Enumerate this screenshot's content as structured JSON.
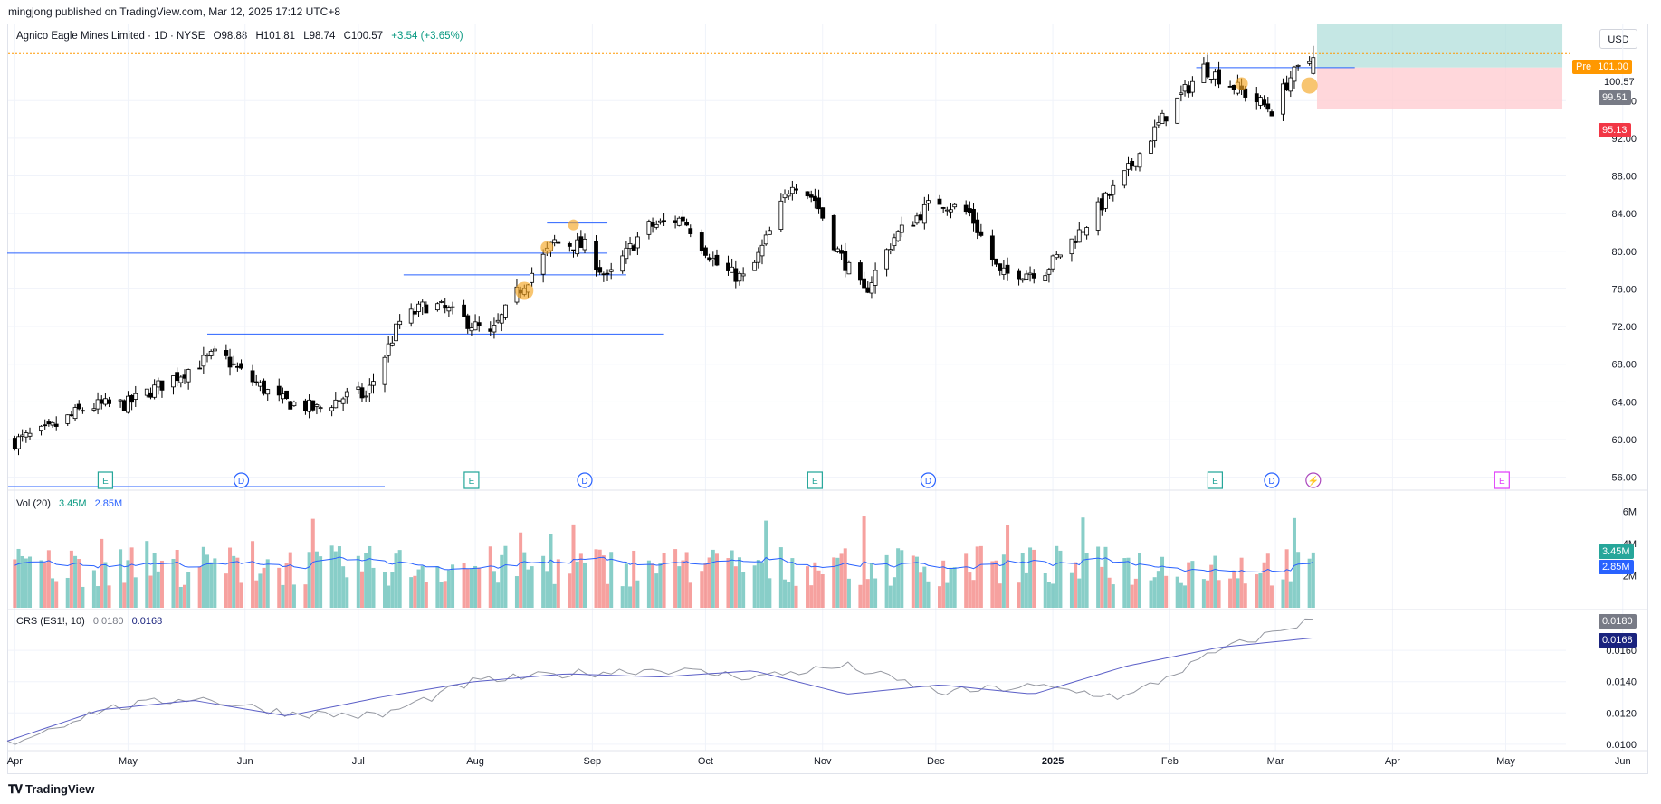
{
  "publisher": "mingjong published on TradingView.com, Mar 12, 2025 17:12 UTC+8",
  "legend": {
    "symbol": "Agnico Eagle Mines Limited · 1D · NYSE",
    "open": "O98.88",
    "high": "H101.81",
    "low": "L98.74",
    "close": "C100.57",
    "change": "+3.54 (+3.65%)"
  },
  "volume_legend": {
    "label": "Vol (20)",
    "vol": "3.45M",
    "ma": "2.85M"
  },
  "crs_legend": {
    "label": "CRS (ES1!, 10)",
    "v1": "0.0180",
    "v2": "0.0168"
  },
  "currency": "USD",
  "price_tags": {
    "pre_label": "Pre",
    "pre": "101.00",
    "close": "100.57",
    "entry": "99.51",
    "stop": "95.13",
    "vol": "3.45M",
    "vol_ma": "2.85M",
    "crs1": "0.0180",
    "crs2": "0.0168"
  },
  "colors": {
    "up": "#26a69a",
    "down": "#ef5350",
    "line": "#2962ff",
    "candle_up_body": "#ffffff",
    "candle_down_body": "#000000",
    "target_zone": "#b2dfdb",
    "stop_zone": "#ffcdd2",
    "highlight": "#f5a623",
    "ma_line": "#5b5fc7"
  },
  "brand": "TradingView",
  "chart_data": [
    {
      "type": "candlestick",
      "title": "Agnico Eagle Mines Limited · 1D · NYSE",
      "x_ticks": [
        "Apr",
        "May",
        "Jun",
        "Jul",
        "Aug",
        "Sep",
        "Oct",
        "Nov",
        "Dec",
        "2025",
        "Feb",
        "Mar",
        "Apr",
        "May",
        "Jun"
      ],
      "y_ticks": [
        56.0,
        60.0,
        64.0,
        68.0,
        72.0,
        76.0,
        80.0,
        84.0,
        88.0,
        92.0,
        96.0
      ],
      "ylim": [
        55,
        104
      ],
      "close_path": [
        {
          "date": "2024-04-01",
          "close": 59.8
        },
        {
          "date": "2024-04-10",
          "close": 61.0
        },
        {
          "date": "2024-04-20",
          "close": 63.5
        },
        {
          "date": "2024-05-01",
          "close": 63.8
        },
        {
          "date": "2024-05-15",
          "close": 67.0
        },
        {
          "date": "2024-05-25",
          "close": 69.2
        },
        {
          "date": "2024-06-01",
          "close": 66.8
        },
        {
          "date": "2024-06-10",
          "close": 64.2
        },
        {
          "date": "2024-06-20",
          "close": 63.2
        },
        {
          "date": "2024-06-30",
          "close": 65.0
        },
        {
          "date": "2024-07-03",
          "close": 64.5
        },
        {
          "date": "2024-07-12",
          "close": 72.5
        },
        {
          "date": "2024-07-20",
          "close": 74.5
        },
        {
          "date": "2024-07-28",
          "close": 73.0
        },
        {
          "date": "2024-08-05",
          "close": 71.0
        },
        {
          "date": "2024-08-12",
          "close": 75.5
        },
        {
          "date": "2024-08-22",
          "close": 81.0
        },
        {
          "date": "2024-08-30",
          "close": 80.5
        },
        {
          "date": "2024-09-05",
          "close": 77.0
        },
        {
          "date": "2024-09-15",
          "close": 82.5
        },
        {
          "date": "2024-09-25",
          "close": 83.5
        },
        {
          "date": "2024-10-05",
          "close": 78.0
        },
        {
          "date": "2024-10-12",
          "close": 77.0
        },
        {
          "date": "2024-10-18",
          "close": 82.0
        },
        {
          "date": "2024-10-24",
          "close": 87.5
        },
        {
          "date": "2024-10-30",
          "close": 85.5
        },
        {
          "date": "2024-11-05",
          "close": 80.0
        },
        {
          "date": "2024-11-12",
          "close": 75.5
        },
        {
          "date": "2024-11-20",
          "close": 81.5
        },
        {
          "date": "2024-12-01",
          "close": 85.5
        },
        {
          "date": "2024-12-10",
          "close": 84.0
        },
        {
          "date": "2024-12-18",
          "close": 77.5
        },
        {
          "date": "2024-12-30",
          "close": 78.0
        },
        {
          "date": "2025-01-08",
          "close": 82.0
        },
        {
          "date": "2025-01-20",
          "close": 88.0
        },
        {
          "date": "2025-01-30",
          "close": 94.0
        },
        {
          "date": "2025-02-10",
          "close": 99.5
        },
        {
          "date": "2025-02-20",
          "close": 97.0
        },
        {
          "date": "2025-02-28",
          "close": 95.0
        },
        {
          "date": "2025-03-05",
          "close": 98.5
        },
        {
          "date": "2025-03-11",
          "close": 100.57
        }
      ],
      "horizontal_levels": [
        71.2,
        77.5,
        79.8,
        83.0,
        99.5
      ],
      "position": {
        "entry": 99.51,
        "stop": 95.13,
        "target": 107.0
      },
      "events": [
        {
          "kind": "E",
          "date": "2024-04-25"
        },
        {
          "kind": "D",
          "date": "2024-05-31"
        },
        {
          "kind": "E",
          "date": "2024-07-31"
        },
        {
          "kind": "D",
          "date": "2024-08-30"
        },
        {
          "kind": "E",
          "date": "2024-10-30"
        },
        {
          "kind": "D",
          "date": "2024-11-29"
        },
        {
          "kind": "E",
          "date": "2025-02-13"
        },
        {
          "kind": "D",
          "date": "2025-02-28"
        },
        {
          "kind": "split",
          "date": "2025-03-11"
        },
        {
          "kind": "E",
          "date": "2025-04-30"
        }
      ]
    },
    {
      "type": "bar",
      "title": "Vol (20)",
      "y_ticks": [
        "2M",
        "4M",
        "6M"
      ],
      "latest": 3.45,
      "ma_latest": 2.85,
      "typical_range": [
        1.2,
        5.8
      ]
    },
    {
      "type": "line",
      "title": "CRS (ES1!, 10)",
      "y_ticks": [
        0.01,
        0.012,
        0.014,
        0.016
      ],
      "series": [
        {
          "values": [
            0.01,
            0.0122,
            0.013,
            0.012,
            0.0118,
            0.014,
            0.0145,
            0.0148,
            0.0143,
            0.015,
            0.0133,
            0.0137,
            0.013,
            0.016,
            0.018
          ]
        },
        {
          "values": [
            0.0102,
            0.0122,
            0.0128,
            0.0118,
            0.013,
            0.014,
            0.0145,
            0.0143,
            0.0147,
            0.0132,
            0.0138,
            0.0132,
            0.015,
            0.0162,
            0.0168
          ]
        }
      ]
    }
  ]
}
